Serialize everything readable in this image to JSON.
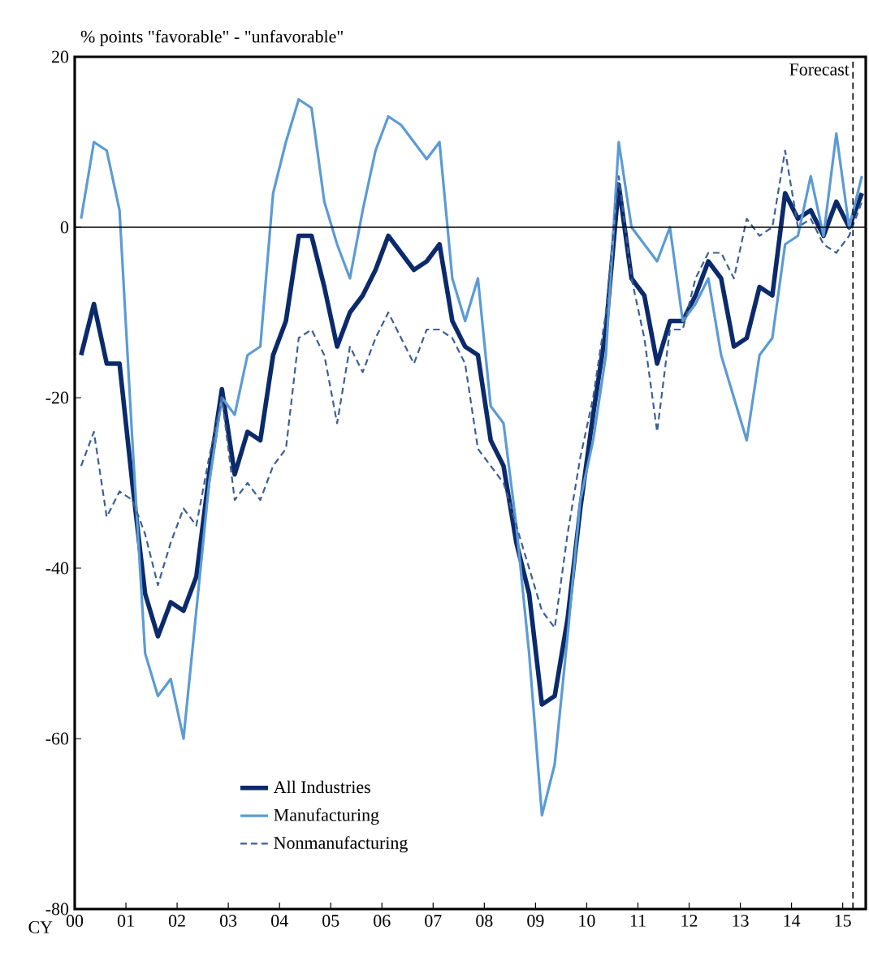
{
  "chart_data": {
    "type": "line",
    "ylabel": "% points \"favorable\" - \"unfavorable\"",
    "xlabel": "CY",
    "x": [
      2000.125,
      2000.375,
      2000.625,
      2000.875,
      2001.125,
      2001.375,
      2001.625,
      2001.875,
      2002.125,
      2002.375,
      2002.625,
      2002.875,
      2003.125,
      2003.375,
      2003.625,
      2003.875,
      2004.125,
      2004.375,
      2004.625,
      2004.875,
      2005.125,
      2005.375,
      2005.625,
      2005.875,
      2006.125,
      2006.375,
      2006.625,
      2006.875,
      2007.125,
      2007.375,
      2007.625,
      2007.875,
      2008.125,
      2008.375,
      2008.625,
      2008.875,
      2009.125,
      2009.375,
      2009.625,
      2009.875,
      2010.125,
      2010.375,
      2010.625,
      2010.875,
      2011.125,
      2011.375,
      2011.625,
      2011.875,
      2012.125,
      2012.375,
      2012.625,
      2012.875,
      2013.125,
      2013.375,
      2013.625,
      2013.875,
      2014.125,
      2014.375,
      2014.625,
      2014.875,
      2015.125,
      2015.375
    ],
    "series": [
      {
        "name": "All Industries",
        "color": "#0b2a6b",
        "line_style": "solid",
        "values": [
          -15,
          -9,
          -16,
          -16,
          -30,
          -43,
          -48,
          -44,
          -45,
          -41,
          -29,
          -19,
          -29,
          -24,
          -25,
          -15,
          -11,
          -1,
          -1,
          -7,
          -14,
          -10,
          -8,
          -5,
          -1,
          -3,
          -5,
          -4,
          -2,
          -11,
          -14,
          -15,
          -25,
          -28,
          -37,
          -43,
          -56,
          -55,
          -46,
          -33,
          -22,
          -12,
          5,
          -6,
          -8,
          -16,
          -11,
          -11,
          -8,
          -4,
          -6,
          -14,
          -13,
          -7,
          -8,
          4,
          1,
          2,
          -1,
          3,
          0,
          4
        ]
      },
      {
        "name": "Manufacturing",
        "color": "#5b9bd5",
        "line_style": "solid",
        "values": [
          1,
          10,
          9,
          2,
          -25,
          -50,
          -55,
          -53,
          -60,
          -45,
          -30,
          -20,
          -22,
          -15,
          -14,
          4,
          10,
          15,
          14,
          3,
          -2,
          -6,
          2,
          9,
          13,
          12,
          10,
          8,
          10,
          -6,
          -11,
          -6,
          -21,
          -23,
          -35,
          -50,
          -69,
          -63,
          -48,
          -32,
          -25,
          -15,
          10,
          0,
          -2,
          -4,
          0,
          -11,
          -9,
          -6,
          -15,
          -20,
          -25,
          -15,
          -13,
          -2,
          -1,
          6,
          -1,
          11,
          0,
          6
        ]
      },
      {
        "name": "Nonmanufacturing",
        "color": "#3b5f95",
        "line_style": "dashed",
        "values": [
          -28,
          -24,
          -34,
          -31,
          -32,
          -36,
          -42,
          -37,
          -33,
          -35,
          -27,
          -20,
          -32,
          -30,
          -32,
          -28,
          -26,
          -13,
          -12,
          -15,
          -23,
          -14,
          -17,
          -13,
          -10,
          -13,
          -16,
          -12,
          -12,
          -13,
          -16,
          -26,
          -28,
          -30,
          -35,
          -40,
          -45,
          -47,
          -36,
          -27,
          -20,
          -10,
          6,
          -6,
          -13,
          -24,
          -12,
          -12,
          -6,
          -3,
          -3,
          -6,
          1,
          -1,
          0,
          9,
          0,
          1,
          -2,
          -3,
          -1,
          3
        ]
      }
    ],
    "xlim": [
      2000,
      2015.45
    ],
    "xticks": [
      {
        "value": 2000,
        "label": "00"
      },
      {
        "value": 2001,
        "label": "01"
      },
      {
        "value": 2002,
        "label": "02"
      },
      {
        "value": 2003,
        "label": "03"
      },
      {
        "value": 2004,
        "label": "04"
      },
      {
        "value": 2005,
        "label": "05"
      },
      {
        "value": 2006,
        "label": "06"
      },
      {
        "value": 2007,
        "label": "07"
      },
      {
        "value": 2008,
        "label": "08"
      },
      {
        "value": 2009,
        "label": "09"
      },
      {
        "value": 2010,
        "label": "10"
      },
      {
        "value": 2011,
        "label": "11"
      },
      {
        "value": 2012,
        "label": "12"
      },
      {
        "value": 2013,
        "label": "13"
      },
      {
        "value": 2014,
        "label": "14"
      },
      {
        "value": 2015,
        "label": "15"
      }
    ],
    "ylim": [
      -80,
      20
    ],
    "yticks": [
      -80,
      -60,
      -40,
      -20,
      0,
      20
    ],
    "ref_lines": [
      {
        "axis": "y",
        "value": 0,
        "color": "#000000",
        "line_style": "solid"
      },
      {
        "axis": "x",
        "value": 2015.2,
        "label": "Forecast",
        "color": "#000000",
        "line_style": "dashed"
      }
    ],
    "legend": "bottom left",
    "grid": false,
    "marker": "none"
  }
}
